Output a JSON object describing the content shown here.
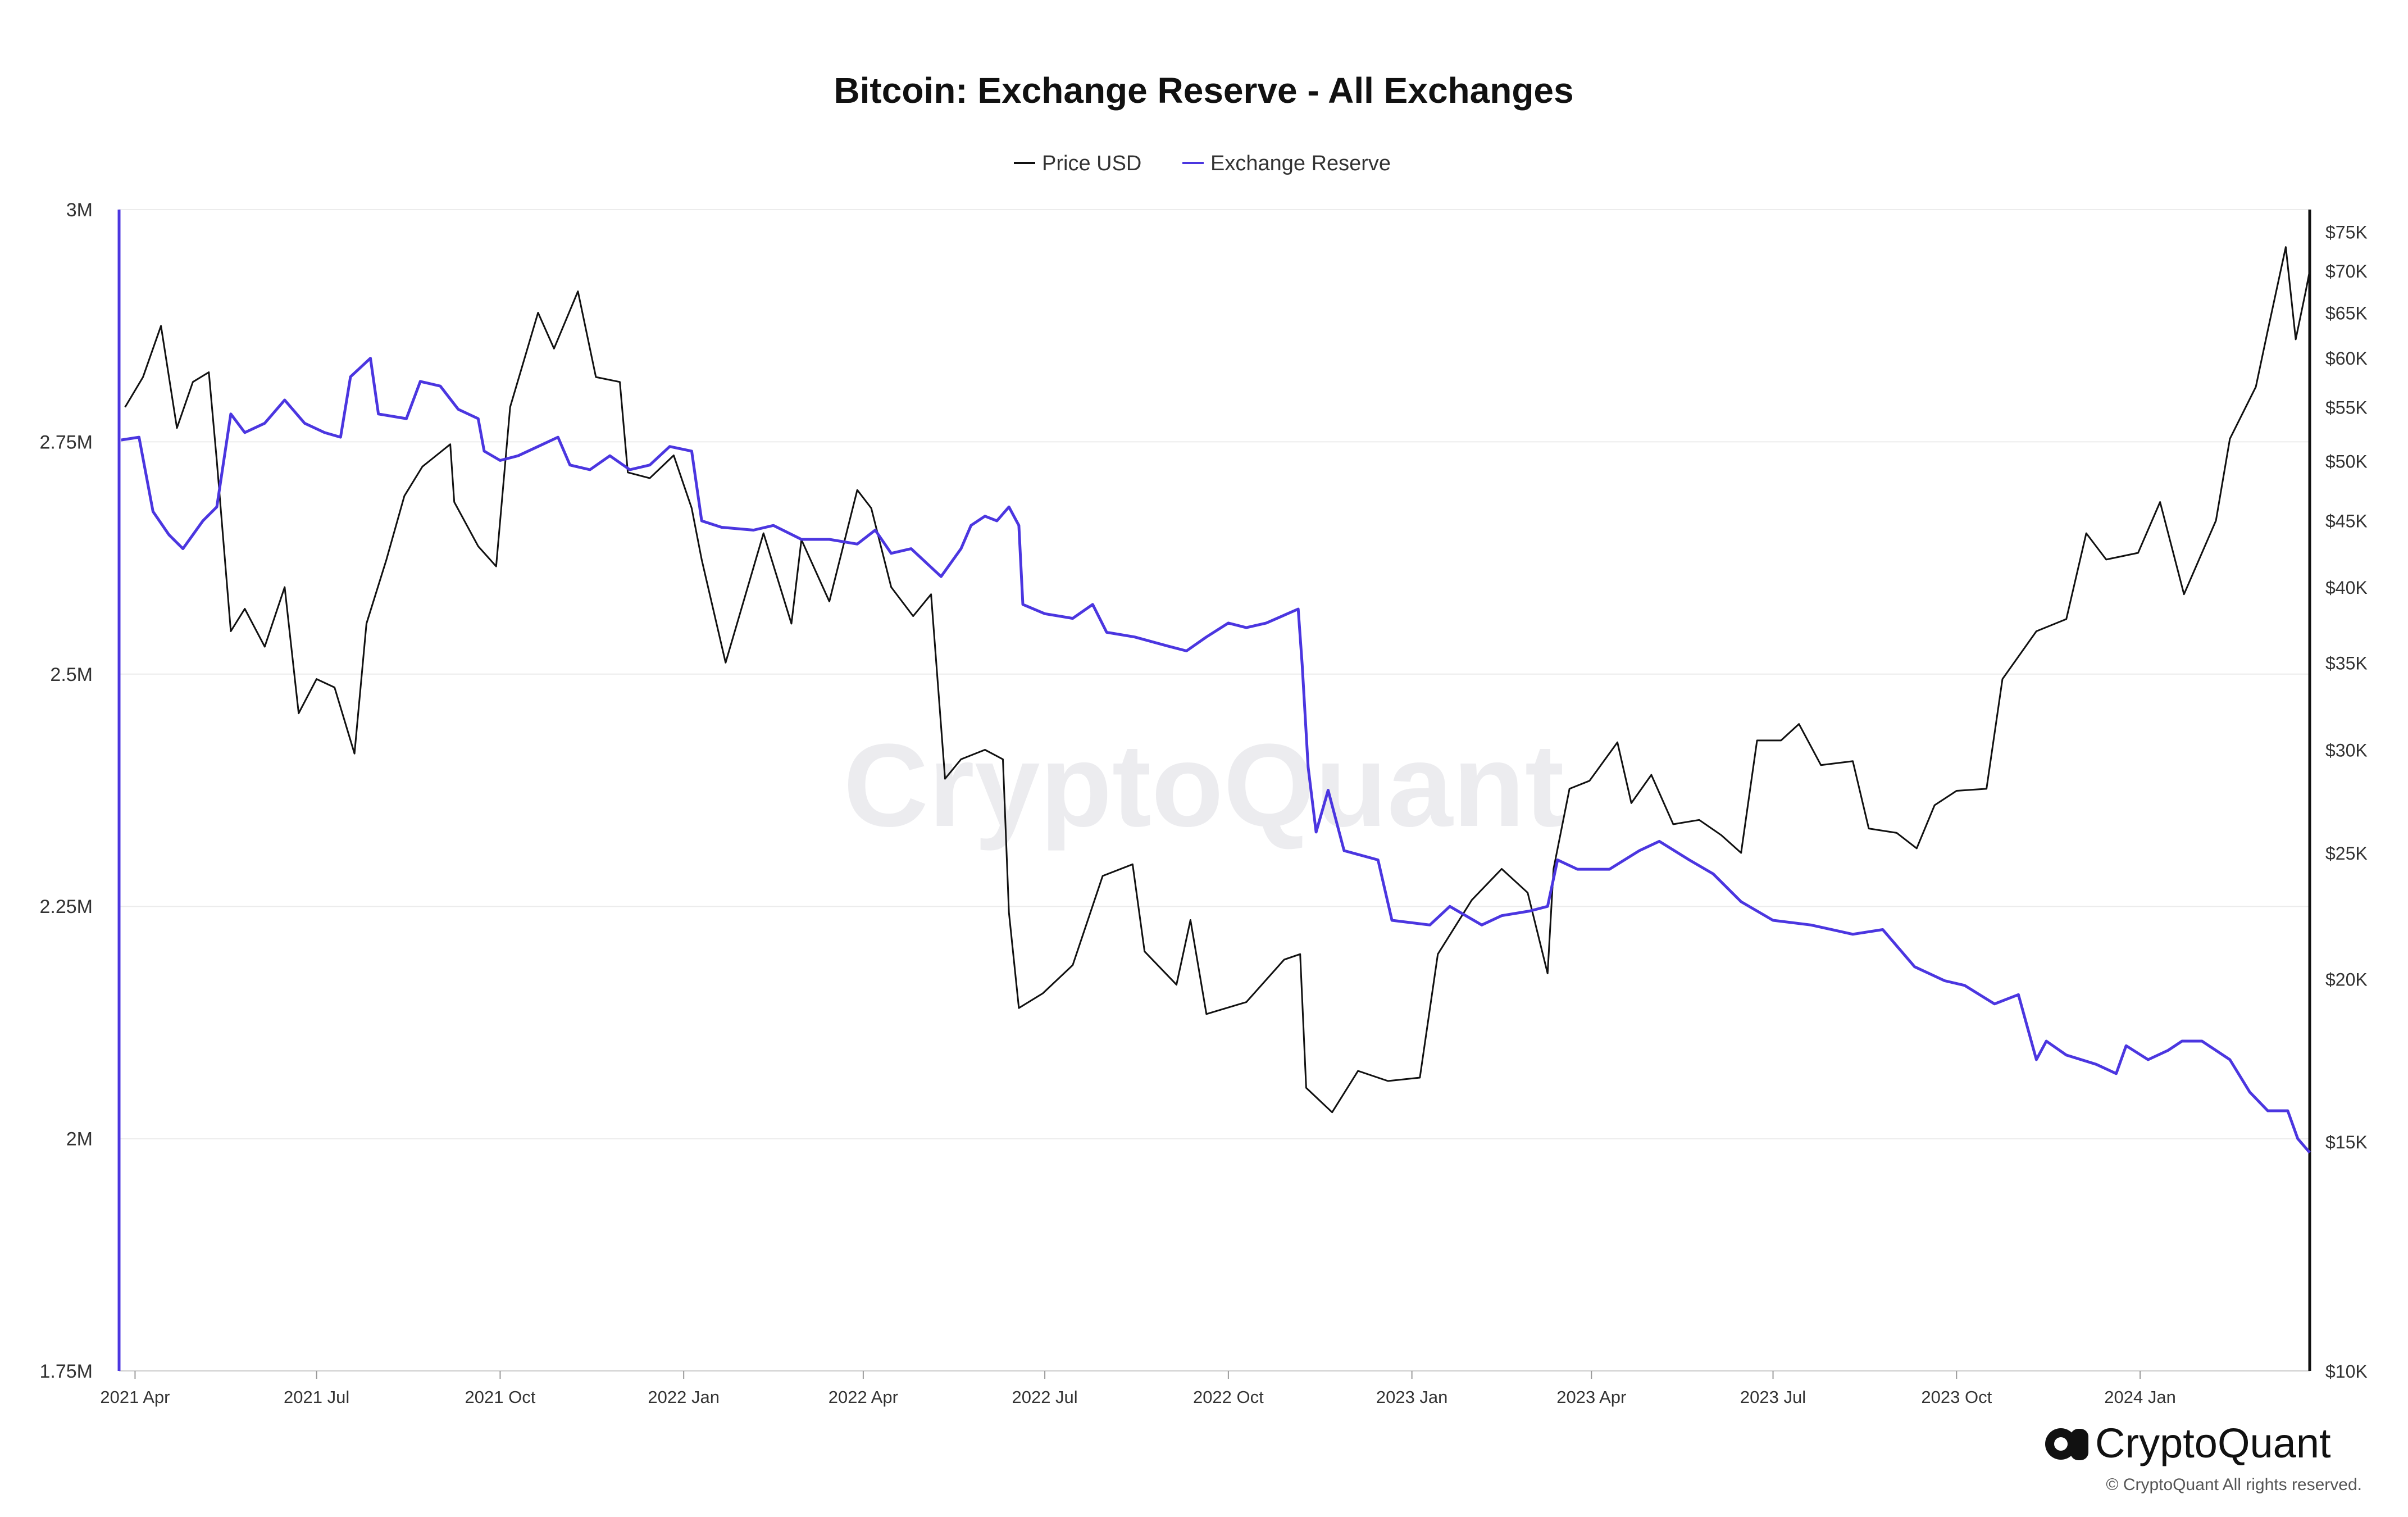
{
  "colors": {
    "price": "#111111",
    "reserve": "#4b36e0",
    "grid": "#ececec",
    "axis_left": "#4b36e0",
    "axis_right": "#111111"
  },
  "chart_data": {
    "type": "line",
    "title": "Bitcoin: Exchange Reserve - All Exchanges",
    "legend": {
      "placement": "top-center",
      "items": [
        "Price USD",
        "Exchange Reserve"
      ]
    },
    "grid": true,
    "x_ticks": [
      "2021 Apr",
      "2021 Jul",
      "2021 Oct",
      "2022 Jan",
      "2022 Apr",
      "2022 Jul",
      "2022 Oct",
      "2023 Jan",
      "2023 Apr",
      "2023 Jul",
      "2023 Oct",
      "2024 Jan"
    ],
    "x_tick_dates": [
      "2021-04-01",
      "2021-07-01",
      "2021-10-01",
      "2022-01-01",
      "2022-04-01",
      "2022-07-01",
      "2022-10-01",
      "2023-01-01",
      "2023-04-01",
      "2023-07-01",
      "2023-10-01",
      "2024-01-01"
    ],
    "x_range": [
      "2021-03-24",
      "2024-03-26"
    ],
    "y_left": {
      "ticks": [
        1750000,
        2000000,
        2250000,
        2500000,
        2750000,
        3000000
      ],
      "tick_labels": [
        "1.75M",
        "2M",
        "2.25M",
        "2.5M",
        "2.75M",
        "3M"
      ],
      "range": [
        1750000,
        3000000
      ]
    },
    "y_right": {
      "scale": "log",
      "ticks": [
        10000,
        15000,
        20000,
        25000,
        30000,
        35000,
        40000,
        45000,
        50000,
        55000,
        60000,
        65000,
        70000,
        75000
      ],
      "tick_labels": [
        "$10K",
        "$15K",
        "$20K",
        "$25K",
        "$30K",
        "$35K",
        "$40K",
        "$45K",
        "$50K",
        "$55K",
        "$60K",
        "$65K",
        "$70K",
        "$75K"
      ],
      "range": [
        10000,
        78000
      ]
    },
    "series": [
      {
        "name": "Price USD",
        "axis": "right",
        "points": [
          [
            "2021-03-27",
            55000
          ],
          [
            "2021-04-05",
            58000
          ],
          [
            "2021-04-14",
            63500
          ],
          [
            "2021-04-22",
            53000
          ],
          [
            "2021-04-30",
            57500
          ],
          [
            "2021-05-08",
            58500
          ],
          [
            "2021-05-12",
            50000
          ],
          [
            "2021-05-19",
            37000
          ],
          [
            "2021-05-26",
            38500
          ],
          [
            "2021-06-05",
            36000
          ],
          [
            "2021-06-15",
            40000
          ],
          [
            "2021-06-22",
            32000
          ],
          [
            "2021-07-01",
            34000
          ],
          [
            "2021-07-10",
            33500
          ],
          [
            "2021-07-20",
            29800
          ],
          [
            "2021-07-26",
            37500
          ],
          [
            "2021-08-05",
            42000
          ],
          [
            "2021-08-14",
            47000
          ],
          [
            "2021-08-23",
            49500
          ],
          [
            "2021-09-06",
            51500
          ],
          [
            "2021-09-08",
            46500
          ],
          [
            "2021-09-20",
            43000
          ],
          [
            "2021-09-29",
            41500
          ],
          [
            "2021-10-06",
            55000
          ],
          [
            "2021-10-20",
            65000
          ],
          [
            "2021-10-28",
            61000
          ],
          [
            "2021-11-09",
            67500
          ],
          [
            "2021-11-18",
            58000
          ],
          [
            "2021-11-30",
            57500
          ],
          [
            "2021-12-04",
            49000
          ],
          [
            "2021-12-15",
            48500
          ],
          [
            "2021-12-27",
            50500
          ],
          [
            "2022-01-05",
            46000
          ],
          [
            "2022-01-10",
            42000
          ],
          [
            "2022-01-22",
            35000
          ],
          [
            "2022-02-10",
            44000
          ],
          [
            "2022-02-24",
            37500
          ],
          [
            "2022-03-01",
            43500
          ],
          [
            "2022-03-15",
            39000
          ],
          [
            "2022-03-29",
            47500
          ],
          [
            "2022-04-05",
            46000
          ],
          [
            "2022-04-15",
            40000
          ],
          [
            "2022-04-26",
            38000
          ],
          [
            "2022-05-05",
            39500
          ],
          [
            "2022-05-12",
            28500
          ],
          [
            "2022-05-20",
            29500
          ],
          [
            "2022-06-01",
            30000
          ],
          [
            "2022-06-10",
            29500
          ],
          [
            "2022-06-13",
            22500
          ],
          [
            "2022-06-18",
            19000
          ],
          [
            "2022-06-30",
            19500
          ],
          [
            "2022-07-15",
            20500
          ],
          [
            "2022-07-30",
            24000
          ],
          [
            "2022-08-14",
            24500
          ],
          [
            "2022-08-20",
            21000
          ],
          [
            "2022-09-05",
            19800
          ],
          [
            "2022-09-12",
            22200
          ],
          [
            "2022-09-20",
            18800
          ],
          [
            "2022-10-10",
            19200
          ],
          [
            "2022-10-29",
            20700
          ],
          [
            "2022-11-06",
            20900
          ],
          [
            "2022-11-09",
            16500
          ],
          [
            "2022-11-22",
            15800
          ],
          [
            "2022-12-05",
            17000
          ],
          [
            "2022-12-20",
            16700
          ],
          [
            "2023-01-05",
            16800
          ],
          [
            "2023-01-14",
            20900
          ],
          [
            "2023-01-31",
            23000
          ],
          [
            "2023-02-15",
            24300
          ],
          [
            "2023-02-28",
            23300
          ],
          [
            "2023-03-10",
            20200
          ],
          [
            "2023-03-13",
            24300
          ],
          [
            "2023-03-21",
            28000
          ],
          [
            "2023-03-31",
            28400
          ],
          [
            "2023-04-14",
            30400
          ],
          [
            "2023-04-21",
            27300
          ],
          [
            "2023-05-01",
            28700
          ],
          [
            "2023-05-12",
            26300
          ],
          [
            "2023-05-25",
            26500
          ],
          [
            "2023-06-05",
            25800
          ],
          [
            "2023-06-15",
            25000
          ],
          [
            "2023-06-23",
            30500
          ],
          [
            "2023-07-05",
            30500
          ],
          [
            "2023-07-14",
            31400
          ],
          [
            "2023-07-25",
            29200
          ],
          [
            "2023-08-10",
            29400
          ],
          [
            "2023-08-18",
            26100
          ],
          [
            "2023-09-01",
            25900
          ],
          [
            "2023-09-11",
            25200
          ],
          [
            "2023-09-20",
            27200
          ],
          [
            "2023-10-01",
            27900
          ],
          [
            "2023-10-16",
            28000
          ],
          [
            "2023-10-24",
            34000
          ],
          [
            "2023-11-10",
            37000
          ],
          [
            "2023-11-25",
            37800
          ],
          [
            "2023-12-05",
            44000
          ],
          [
            "2023-12-15",
            42000
          ],
          [
            "2023-12-31",
            42500
          ],
          [
            "2024-01-11",
            46500
          ],
          [
            "2024-01-23",
            39500
          ],
          [
            "2024-02-08",
            45000
          ],
          [
            "2024-02-15",
            52000
          ],
          [
            "2024-02-28",
            57000
          ],
          [
            "2024-03-05",
            63000
          ],
          [
            "2024-03-14",
            73000
          ],
          [
            "2024-03-19",
            62000
          ],
          [
            "2024-03-24",
            67500
          ],
          [
            "2024-03-26",
            70000
          ]
        ]
      },
      {
        "name": "Exchange Reserve",
        "axis": "left",
        "points": [
          [
            "2021-03-25",
            2752000
          ],
          [
            "2021-04-03",
            2755000
          ],
          [
            "2021-04-10",
            2675000
          ],
          [
            "2021-04-18",
            2650000
          ],
          [
            "2021-04-25",
            2635000
          ],
          [
            "2021-05-05",
            2665000
          ],
          [
            "2021-05-12",
            2680000
          ],
          [
            "2021-05-19",
            2780000
          ],
          [
            "2021-05-26",
            2760000
          ],
          [
            "2021-06-05",
            2770000
          ],
          [
            "2021-06-15",
            2795000
          ],
          [
            "2021-06-25",
            2770000
          ],
          [
            "2021-07-05",
            2760000
          ],
          [
            "2021-07-13",
            2755000
          ],
          [
            "2021-07-18",
            2820000
          ],
          [
            "2021-07-28",
            2840000
          ],
          [
            "2021-08-01",
            2780000
          ],
          [
            "2021-08-15",
            2775000
          ],
          [
            "2021-08-22",
            2815000
          ],
          [
            "2021-09-01",
            2810000
          ],
          [
            "2021-09-10",
            2785000
          ],
          [
            "2021-09-20",
            2775000
          ],
          [
            "2021-09-23",
            2740000
          ],
          [
            "2021-10-01",
            2730000
          ],
          [
            "2021-10-10",
            2735000
          ],
          [
            "2021-10-20",
            2745000
          ],
          [
            "2021-10-30",
            2755000
          ],
          [
            "2021-11-05",
            2725000
          ],
          [
            "2021-11-15",
            2720000
          ],
          [
            "2021-11-25",
            2735000
          ],
          [
            "2021-12-05",
            2720000
          ],
          [
            "2021-12-15",
            2725000
          ],
          [
            "2021-12-25",
            2745000
          ],
          [
            "2022-01-05",
            2740000
          ],
          [
            "2022-01-10",
            2665000
          ],
          [
            "2022-01-20",
            2658000
          ],
          [
            "2022-02-05",
            2655000
          ],
          [
            "2022-02-15",
            2660000
          ],
          [
            "2022-03-01",
            2645000
          ],
          [
            "2022-03-15",
            2645000
          ],
          [
            "2022-03-29",
            2640000
          ],
          [
            "2022-04-07",
            2655000
          ],
          [
            "2022-04-15",
            2630000
          ],
          [
            "2022-04-25",
            2635000
          ],
          [
            "2022-05-10",
            2605000
          ],
          [
            "2022-05-20",
            2635000
          ],
          [
            "2022-05-25",
            2660000
          ],
          [
            "2022-06-01",
            2670000
          ],
          [
            "2022-06-07",
            2665000
          ],
          [
            "2022-06-13",
            2680000
          ],
          [
            "2022-06-18",
            2660000
          ],
          [
            "2022-06-20",
            2575000
          ],
          [
            "2022-07-01",
            2565000
          ],
          [
            "2022-07-15",
            2560000
          ],
          [
            "2022-07-25",
            2575000
          ],
          [
            "2022-08-01",
            2545000
          ],
          [
            "2022-08-15",
            2540000
          ],
          [
            "2022-09-01",
            2530000
          ],
          [
            "2022-09-10",
            2525000
          ],
          [
            "2022-09-20",
            2540000
          ],
          [
            "2022-10-01",
            2555000
          ],
          [
            "2022-10-10",
            2550000
          ],
          [
            "2022-10-20",
            2555000
          ],
          [
            "2022-11-05",
            2570000
          ],
          [
            "2022-11-07",
            2510000
          ],
          [
            "2022-11-10",
            2400000
          ],
          [
            "2022-11-14",
            2330000
          ],
          [
            "2022-11-20",
            2375000
          ],
          [
            "2022-11-28",
            2310000
          ],
          [
            "2022-12-15",
            2300000
          ],
          [
            "2022-12-22",
            2235000
          ],
          [
            "2023-01-10",
            2230000
          ],
          [
            "2023-01-20",
            2250000
          ],
          [
            "2023-02-05",
            2230000
          ],
          [
            "2023-02-15",
            2240000
          ],
          [
            "2023-03-01",
            2245000
          ],
          [
            "2023-03-10",
            2250000
          ],
          [
            "2023-03-15",
            2300000
          ],
          [
            "2023-03-25",
            2290000
          ],
          [
            "2023-04-10",
            2290000
          ],
          [
            "2023-04-25",
            2310000
          ],
          [
            "2023-05-05",
            2320000
          ],
          [
            "2023-05-20",
            2300000
          ],
          [
            "2023-06-01",
            2285000
          ],
          [
            "2023-06-15",
            2255000
          ],
          [
            "2023-07-01",
            2235000
          ],
          [
            "2023-07-20",
            2230000
          ],
          [
            "2023-08-10",
            2220000
          ],
          [
            "2023-08-25",
            2225000
          ],
          [
            "2023-09-10",
            2185000
          ],
          [
            "2023-09-25",
            2170000
          ],
          [
            "2023-10-05",
            2165000
          ],
          [
            "2023-10-20",
            2145000
          ],
          [
            "2023-11-01",
            2155000
          ],
          [
            "2023-11-10",
            2085000
          ],
          [
            "2023-11-15",
            2105000
          ],
          [
            "2023-11-25",
            2090000
          ],
          [
            "2023-12-10",
            2080000
          ],
          [
            "2023-12-20",
            2070000
          ],
          [
            "2023-12-25",
            2100000
          ],
          [
            "2024-01-05",
            2085000
          ],
          [
            "2024-01-15",
            2095000
          ],
          [
            "2024-01-22",
            2105000
          ],
          [
            "2024-02-01",
            2105000
          ],
          [
            "2024-02-15",
            2085000
          ],
          [
            "2024-02-25",
            2050000
          ],
          [
            "2024-03-05",
            2030000
          ],
          [
            "2024-03-15",
            2030000
          ],
          [
            "2024-03-20",
            2000000
          ],
          [
            "2024-03-26",
            1985000
          ]
        ]
      }
    ]
  },
  "watermark": "CryptoQuant",
  "brand": {
    "name": "CryptoQuant",
    "icon": "cryptoquant-logo-icon",
    "copyright": "© CryptoQuant All rights reserved."
  }
}
